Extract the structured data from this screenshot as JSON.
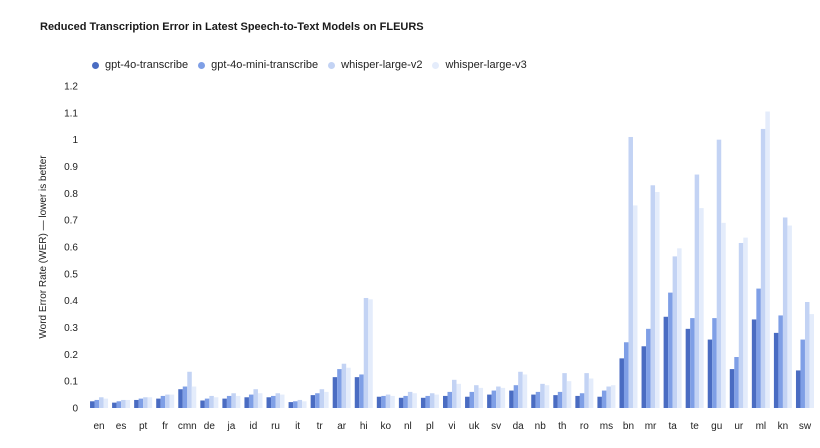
{
  "chart_data": {
    "type": "bar",
    "title": "Reduced Transcription Error in Latest Speech-to-Text Models on FLEURS",
    "xlabel": "",
    "ylabel": "Word Error Rate (WER) — lower is better",
    "ylim": [
      0,
      1.2
    ],
    "yticks": [
      "0",
      "0.1",
      "0.2",
      "0.3",
      "0.4",
      "0.5",
      "0.6",
      "0.7",
      "0.8",
      "0.9",
      "1",
      "1.1",
      "1.2"
    ],
    "grid": false,
    "legend_position": "top-left",
    "categories": [
      "en",
      "es",
      "pt",
      "fr",
      "cmn",
      "de",
      "ja",
      "id",
      "ru",
      "it",
      "tr",
      "ar",
      "hi",
      "ko",
      "nl",
      "pl",
      "vi",
      "uk",
      "sv",
      "da",
      "nb",
      "th",
      "ro",
      "ms",
      "bn",
      "mr",
      "ta",
      "te",
      "gu",
      "ur",
      "ml",
      "kn",
      "sw"
    ],
    "series": [
      {
        "name": "gpt-4o-transcribe",
        "color": "#4a6cc2",
        "values": [
          0.025,
          0.02,
          0.03,
          0.035,
          0.07,
          0.028,
          0.035,
          0.04,
          0.04,
          0.022,
          0.048,
          0.115,
          0.115,
          0.042,
          0.038,
          0.038,
          0.045,
          0.042,
          0.05,
          0.065,
          0.05,
          0.048,
          0.045,
          0.042,
          0.185,
          0.23,
          0.34,
          0.295,
          0.255,
          0.145,
          0.33,
          0.28,
          0.14
        ]
      },
      {
        "name": "gpt-4o-mini-transcribe",
        "color": "#7f9fe6",
        "values": [
          0.03,
          0.025,
          0.035,
          0.045,
          0.08,
          0.035,
          0.045,
          0.05,
          0.045,
          0.025,
          0.055,
          0.145,
          0.125,
          0.045,
          0.045,
          0.045,
          0.06,
          0.06,
          0.065,
          0.085,
          0.06,
          0.06,
          0.055,
          0.065,
          0.245,
          0.295,
          0.43,
          0.335,
          0.335,
          0.19,
          0.445,
          0.345,
          0.255
        ]
      },
      {
        "name": "whisper-large-v2",
        "color": "#c3d3f4",
        "values": [
          0.04,
          0.03,
          0.04,
          0.05,
          0.135,
          0.045,
          0.055,
          0.07,
          0.055,
          0.03,
          0.07,
          0.165,
          0.41,
          0.05,
          0.06,
          0.055,
          0.105,
          0.085,
          0.08,
          0.135,
          0.09,
          0.13,
          0.13,
          0.08,
          1.01,
          0.83,
          0.565,
          0.87,
          1.0,
          0.615,
          1.04,
          0.71,
          0.395
        ]
      },
      {
        "name": "whisper-large-v3",
        "color": "#e4ecfb",
        "values": [
          0.035,
          0.03,
          0.04,
          0.05,
          0.08,
          0.04,
          0.045,
          0.055,
          0.05,
          0.025,
          0.06,
          0.15,
          0.405,
          0.045,
          0.055,
          0.05,
          0.09,
          0.075,
          0.075,
          0.125,
          0.085,
          0.1,
          0.11,
          0.085,
          0.755,
          0.805,
          0.595,
          0.745,
          0.69,
          0.635,
          1.105,
          0.68,
          0.35
        ]
      }
    ]
  }
}
